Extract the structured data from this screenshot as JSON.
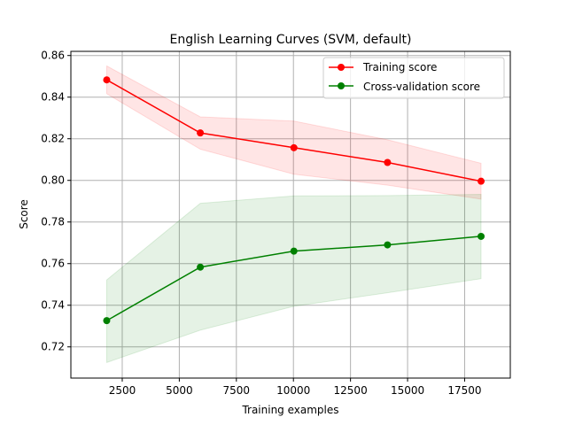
{
  "chart_data": {
    "type": "line",
    "title": "English Learning Curves (SVM, default)",
    "xlabel": "Training examples",
    "ylabel": "Score",
    "xlim": [
      250,
      19500
    ],
    "ylim": [
      0.705,
      0.862
    ],
    "xticks": [
      2500,
      5000,
      7500,
      10000,
      12500,
      15000,
      17500
    ],
    "xtick_labels": [
      "2500",
      "5000",
      "7500",
      "10000",
      "12500",
      "15000",
      "17500"
    ],
    "yticks": [
      0.72,
      0.74,
      0.76,
      0.78,
      0.8,
      0.82,
      0.84,
      0.86
    ],
    "ytick_labels": [
      "0.72",
      "0.74",
      "0.76",
      "0.78",
      "0.80",
      "0.82",
      "0.84",
      "0.86"
    ],
    "grid": true,
    "legend_position": "top-right",
    "x": [
      1820,
      5920,
      10020,
      14120,
      18220
    ],
    "series": [
      {
        "name": "Training score",
        "color": "#ff0000",
        "band_color": "#ff0000",
        "values": [
          0.8483,
          0.8228,
          0.8157,
          0.8086,
          0.7996
        ],
        "upper": [
          0.855,
          0.8305,
          0.8285,
          0.8195,
          0.8082
        ],
        "lower": [
          0.8416,
          0.815,
          0.803,
          0.7977,
          0.791
        ]
      },
      {
        "name": "Cross-validation score",
        "color": "#008000",
        "band_color": "#008000",
        "values": [
          0.7326,
          0.7583,
          0.766,
          0.769,
          0.7731
        ],
        "upper": [
          0.7522,
          0.789,
          0.7925,
          0.7927,
          0.7933
        ],
        "lower": [
          0.7125,
          0.728,
          0.7395,
          0.746,
          0.7528
        ]
      }
    ]
  }
}
